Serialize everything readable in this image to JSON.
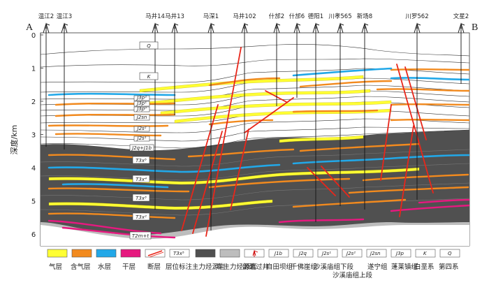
{
  "figure": {
    "label_a": "A",
    "label_b": "B",
    "y_axis_label": "深度/km",
    "depth_ticks": [
      "0",
      "1",
      "2",
      "3",
      "4",
      "5",
      "6"
    ]
  },
  "wells": [
    "温江2",
    "温江3",
    "马井14",
    "马井13",
    "马深1",
    "马井102",
    "什邡2",
    "什邡6",
    "德阳1",
    "川孝565",
    "新场8",
    "川罗562",
    "文星2"
  ],
  "strata_labels": [
    "Q",
    "K",
    "J3p²",
    "J3p¹",
    "J3p⁰",
    "J2sn",
    "J2s²",
    "J2s¹",
    "J2q+J1b",
    "T3x⁵",
    "T3x⁴",
    "T3x³",
    "T3x²",
    "T2m+t"
  ],
  "legend": {
    "gas": "气层",
    "gas_bearing": "含气层",
    "water": "水层",
    "dry": "干层",
    "fault": "断层",
    "horizon_label": "层位标注",
    "horizon_symbol": "T3x⁵",
    "main_source": "主力烃源岩",
    "non_main_source": "非主力烃源岩",
    "section_well": "剖面过井",
    "j1b_code": "J1b",
    "j1b": "自田坝组",
    "j2q_code": "J2q",
    "j2q": "千佛崖组",
    "j2s1_code": "J2s¹",
    "j2s1": "沙溪庙组下段",
    "j2s2_code": "J2s²",
    "j2s2": "沙溪庙组上段",
    "j2sn_code": "J2sn",
    "j2sn": "遂宁组",
    "j3p_code": "J3p",
    "j3p": "蓬莱镇组",
    "k_code": "K",
    "k": "白垩系",
    "q_code": "Q",
    "q": "第四系"
  },
  "colors": {
    "gas": "#ffff33",
    "gas_bearing": "#f28a1e",
    "water": "#22a8e8",
    "dry": "#e6197f",
    "fault": "#e8261a",
    "main_source": "#505050",
    "non_main_source": "#bdbdbd"
  }
}
